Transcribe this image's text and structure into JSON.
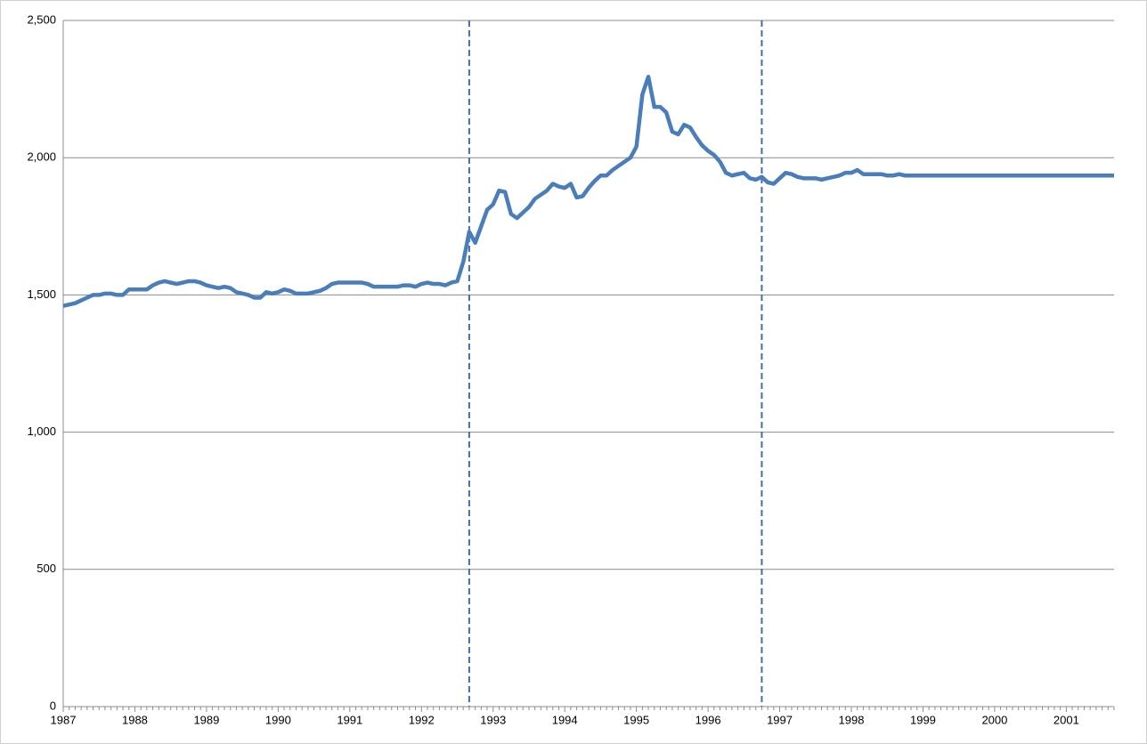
{
  "chart_data": {
    "type": "line",
    "categories": [
      "1987",
      null,
      null,
      null,
      null,
      null,
      null,
      null,
      null,
      null,
      null,
      null,
      "1988",
      null,
      null,
      null,
      null,
      null,
      null,
      null,
      null,
      null,
      null,
      null,
      "1989",
      null,
      null,
      null,
      null,
      null,
      null,
      null,
      null,
      null,
      null,
      null,
      "1990",
      null,
      null,
      null,
      null,
      null,
      null,
      null,
      null,
      null,
      null,
      null,
      "1991",
      null,
      null,
      null,
      null,
      null,
      null,
      null,
      null,
      null,
      null,
      null,
      "1992",
      null,
      null,
      null,
      null,
      null,
      null,
      null,
      null,
      null,
      null,
      null,
      "1993",
      null,
      null,
      null,
      null,
      null,
      null,
      null,
      null,
      null,
      null,
      null,
      "1994",
      null,
      null,
      null,
      null,
      null,
      null,
      null,
      null,
      null,
      null,
      null,
      "1995",
      null,
      null,
      null,
      null,
      null,
      null,
      null,
      null,
      null,
      null,
      null,
      "1996",
      null,
      null,
      null,
      null,
      null,
      null,
      null,
      null,
      null,
      null,
      null,
      "1997",
      null,
      null,
      null,
      null,
      null,
      null,
      null,
      null,
      null,
      null,
      null,
      "1998",
      null,
      null,
      null,
      null,
      null,
      null,
      null,
      null,
      null,
      null,
      null,
      "1999",
      null,
      null,
      null,
      null,
      null,
      null,
      null,
      null,
      null,
      null,
      null,
      "2000",
      null,
      null,
      null,
      null,
      null,
      null,
      null,
      null,
      null,
      null,
      null,
      "2001",
      null,
      null,
      null,
      null,
      null,
      null,
      null,
      null
    ],
    "values": [
      1460,
      1465,
      1470,
      1480,
      1490,
      1500,
      1500,
      1505,
      1505,
      1500,
      1500,
      1520,
      1520,
      1520,
      1520,
      1535,
      1545,
      1550,
      1545,
      1540,
      1545,
      1550,
      1550,
      1545,
      1535,
      1530,
      1525,
      1530,
      1525,
      1510,
      1505,
      1500,
      1490,
      1490,
      1510,
      1505,
      1510,
      1520,
      1515,
      1505,
      1505,
      1505,
      1510,
      1515,
      1525,
      1540,
      1545,
      1545,
      1545,
      1545,
      1545,
      1540,
      1530,
      1530,
      1530,
      1530,
      1530,
      1535,
      1535,
      1530,
      1540,
      1545,
      1540,
      1540,
      1535,
      1545,
      1550,
      1620,
      1730,
      1690,
      1750,
      1810,
      1830,
      1880,
      1875,
      1795,
      1780,
      1800,
      1820,
      1850,
      1865,
      1880,
      1905,
      1895,
      1890,
      1905,
      1855,
      1860,
      1890,
      1915,
      1935,
      1935,
      1955,
      1970,
      1985,
      2000,
      2040,
      2230,
      2295,
      2185,
      2185,
      2165,
      2095,
      2085,
      2120,
      2110,
      2075,
      2045,
      2025,
      2010,
      1985,
      1945,
      1935,
      1940,
      1945,
      1925,
      1920,
      1930,
      1910,
      1905,
      1925,
      1945,
      1940,
      1930,
      1925,
      1925,
      1925,
      1920,
      1925,
      1930,
      1935,
      1945,
      1945,
      1955,
      1940,
      1940,
      1940,
      1940,
      1935,
      1935,
      1940,
      1935,
      1935,
      1935,
      1935,
      1935,
      1935,
      1935,
      1935,
      1935,
      1935,
      1935,
      1935,
      1935,
      1935,
      1935,
      1935,
      1935,
      1935,
      1935,
      1935,
      1935,
      1935,
      1935,
      1935,
      1935,
      1935,
      1935,
      1935,
      1935,
      1935,
      1935,
      1935,
      1935,
      1935,
      1935,
      1935
    ],
    "color": "#4a7ebb",
    "vlines": [
      68,
      117
    ],
    "vline_color": "#3f6fa8",
    "ylim": [
      0,
      2500
    ],
    "yticks": [
      0,
      500,
      {
        "value": 1000,
        "label": "1,000"
      },
      {
        "value": 1500,
        "label": "1,500"
      },
      {
        "value": 2000,
        "label": "2,000"
      },
      {
        "value": 2500,
        "label": "2,500"
      }
    ],
    "grid": true
  }
}
